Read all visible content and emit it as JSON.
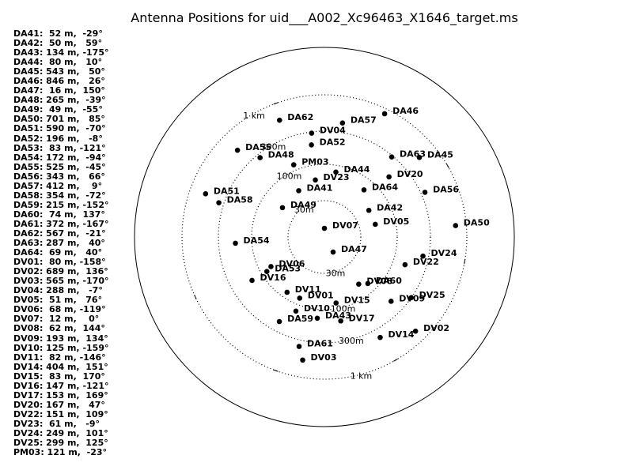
{
  "title": "Antenna Positions for uid___A002_Xc96463_X1646_target.ms",
  "rings": [
    {
      "label": "30m"
    },
    {
      "label": "100m"
    },
    {
      "label": "300m"
    },
    {
      "label": "1 km"
    }
  ],
  "legend": [
    "DA41:  52 m,  -29°",
    "DA42:  50 m,   59°",
    "DA43: 134 m, -175°",
    "DA44:  80 m,   10°",
    "DA45: 543 m,   50°",
    "DA46: 846 m,   26°",
    "DA47:  16 m,  150°",
    "DA48: 265 m,  -39°",
    "DA49:  49 m,  -55°",
    "DA50: 701 m,   85°",
    "DA51: 590 m,  -70°",
    "DA52: 196 m,   -8°",
    "DA53:  83 m, -121°",
    "DA54: 172 m,  -94°",
    "DA55: 525 m,  -45°",
    "DA56: 343 m,   66°",
    "DA57: 412 m,    9°",
    "DA58: 354 m,  -72°",
    "DA59: 215 m, -152°",
    "DA60:  74 m,  137°",
    "DA61: 372 m, -167°",
    "DA62: 567 m,  -21°",
    "DA63: 287 m,   40°",
    "DA64:  69 m,   40°",
    "DV01:  80 m, -158°",
    "DV02: 689 m,  136°",
    "DV03: 565 m, -170°",
    "DV04: 288 m,   -7°",
    "DV05:  51 m,   76°",
    "DV06:  68 m, -119°",
    "DV07:  12 m,    0°",
    "DV08:  62 m,  144°",
    "DV09: 193 m,  134°",
    "DV10: 125 m, -159°",
    "DV11:  82 m, -146°",
    "DV14: 404 m,  151°",
    "DV15:  83 m,  170°",
    "DV16: 147 m, -121°",
    "DV17: 153 m,  169°",
    "DV20: 167 m,   47°",
    "DV22: 151 m,  109°",
    "DV23:  61 m,   -9°",
    "DV24: 249 m,  101°",
    "DV25: 299 m,  125°",
    "PM03: 121 m,  -23°"
  ],
  "chart_data": {
    "type": "scatter",
    "title": "Antenna Positions for uid___A002_Xc96463_X1646_target.ms",
    "radial_scale": "logarithmic",
    "rings_m": [
      30,
      100,
      300,
      1000
    ],
    "ring_labels": [
      "30m",
      "100m",
      "300m",
      "1 km"
    ],
    "antennas": [
      {
        "name": "DA41",
        "dist_m": 52,
        "angle_deg": -29
      },
      {
        "name": "DA42",
        "dist_m": 50,
        "angle_deg": 59
      },
      {
        "name": "DA43",
        "dist_m": 134,
        "angle_deg": -175
      },
      {
        "name": "DA44",
        "dist_m": 80,
        "angle_deg": 10
      },
      {
        "name": "DA45",
        "dist_m": 543,
        "angle_deg": 50
      },
      {
        "name": "DA46",
        "dist_m": 846,
        "angle_deg": 26
      },
      {
        "name": "DA47",
        "dist_m": 16,
        "angle_deg": 150
      },
      {
        "name": "DA48",
        "dist_m": 265,
        "angle_deg": -39
      },
      {
        "name": "DA49",
        "dist_m": 49,
        "angle_deg": -55
      },
      {
        "name": "DA50",
        "dist_m": 701,
        "angle_deg": 85
      },
      {
        "name": "DA51",
        "dist_m": 590,
        "angle_deg": -70
      },
      {
        "name": "DA52",
        "dist_m": 196,
        "angle_deg": -8
      },
      {
        "name": "DA53",
        "dist_m": 83,
        "angle_deg": -121
      },
      {
        "name": "DA54",
        "dist_m": 172,
        "angle_deg": -94
      },
      {
        "name": "DA55",
        "dist_m": 525,
        "angle_deg": -45
      },
      {
        "name": "DA56",
        "dist_m": 343,
        "angle_deg": 66
      },
      {
        "name": "DA57",
        "dist_m": 412,
        "angle_deg": 9
      },
      {
        "name": "DA58",
        "dist_m": 354,
        "angle_deg": -72
      },
      {
        "name": "DA59",
        "dist_m": 215,
        "angle_deg": -152
      },
      {
        "name": "DA60",
        "dist_m": 74,
        "angle_deg": 137
      },
      {
        "name": "DA61",
        "dist_m": 372,
        "angle_deg": -167
      },
      {
        "name": "DA62",
        "dist_m": 567,
        "angle_deg": -21
      },
      {
        "name": "DA63",
        "dist_m": 287,
        "angle_deg": 40
      },
      {
        "name": "DA64",
        "dist_m": 69,
        "angle_deg": 40
      },
      {
        "name": "DV01",
        "dist_m": 80,
        "angle_deg": -158
      },
      {
        "name": "DV02",
        "dist_m": 689,
        "angle_deg": 136
      },
      {
        "name": "DV03",
        "dist_m": 565,
        "angle_deg": -170
      },
      {
        "name": "DV04",
        "dist_m": 288,
        "angle_deg": -7
      },
      {
        "name": "DV05",
        "dist_m": 51,
        "angle_deg": 76
      },
      {
        "name": "DV06",
        "dist_m": 68,
        "angle_deg": -119
      },
      {
        "name": "DV07",
        "dist_m": 12,
        "angle_deg": 0
      },
      {
        "name": "DV08",
        "dist_m": 62,
        "angle_deg": 144
      },
      {
        "name": "DV09",
        "dist_m": 193,
        "angle_deg": 134
      },
      {
        "name": "DV10",
        "dist_m": 125,
        "angle_deg": -159
      },
      {
        "name": "DV11",
        "dist_m": 82,
        "angle_deg": -146
      },
      {
        "name": "DV14",
        "dist_m": 404,
        "angle_deg": 151
      },
      {
        "name": "DV15",
        "dist_m": 83,
        "angle_deg": 170
      },
      {
        "name": "DV16",
        "dist_m": 147,
        "angle_deg": -121
      },
      {
        "name": "DV17",
        "dist_m": 153,
        "angle_deg": 169
      },
      {
        "name": "DV20",
        "dist_m": 167,
        "angle_deg": 47
      },
      {
        "name": "DV22",
        "dist_m": 151,
        "angle_deg": 109
      },
      {
        "name": "DV23",
        "dist_m": 61,
        "angle_deg": -9
      },
      {
        "name": "DV24",
        "dist_m": 249,
        "angle_deg": 101
      },
      {
        "name": "DV25",
        "dist_m": 299,
        "angle_deg": 125
      },
      {
        "name": "PM03",
        "dist_m": 121,
        "angle_deg": -23
      }
    ]
  }
}
